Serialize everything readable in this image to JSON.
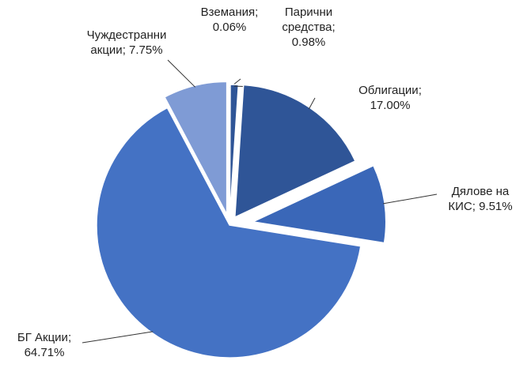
{
  "chart_data": {
    "type": "pie",
    "categories": [
      "Вземания",
      "Парични средства",
      "Облигации",
      "Дялове на КИС",
      "БГ Акции",
      "Чуждестранни акции"
    ],
    "values": [
      0.06,
      0.98,
      17.0,
      9.51,
      64.71,
      7.75
    ],
    "value_labels": [
      "0.06%",
      "0.98%",
      "17.00%",
      "9.51%",
      "64.71%",
      "7.75%"
    ],
    "label_separator": ";",
    "colors": [
      "#2f5597",
      "#2f5597",
      "#2f5597",
      "#3a67b8",
      "#4472c4",
      "#7f9bd5"
    ]
  }
}
